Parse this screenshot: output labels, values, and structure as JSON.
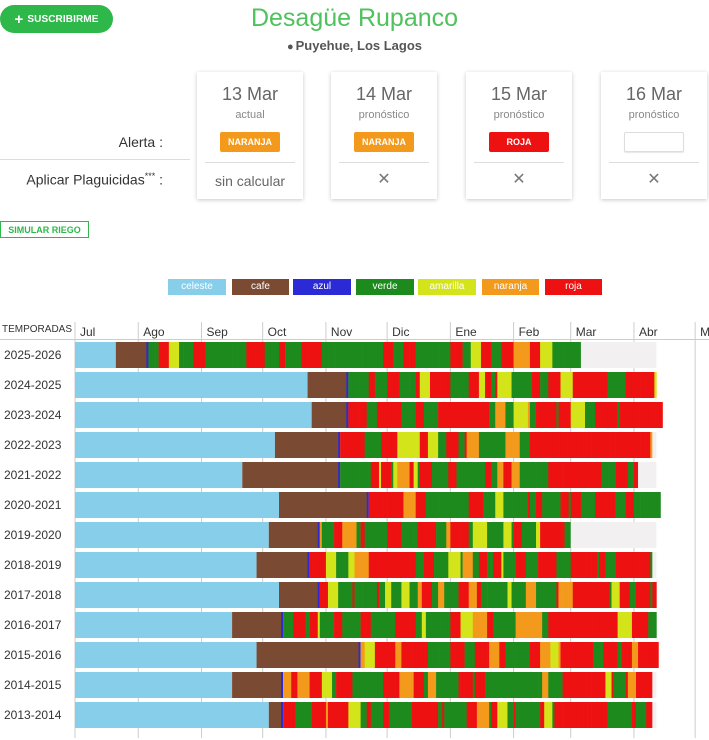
{
  "subscribe_label": "SUSCRIBIRME",
  "title": "Desagüe Rupanco",
  "location": "Puyehue, Los Lagos",
  "labels": {
    "alerta": "Alerta :",
    "plaguicidas": "Aplicar Plaguicidas",
    "plaguicidas_mark": "***",
    "colon": " :"
  },
  "cards": [
    {
      "date": "13 Mar",
      "sub": "actual",
      "alert": "NARANJA",
      "alert_color": "#f39a1c",
      "plaguicidas": "sin calcular"
    },
    {
      "date": "14 Mar",
      "sub": "pronóstico",
      "alert": "NARANJA",
      "alert_color": "#f39a1c",
      "plaguicidas": "✕"
    },
    {
      "date": "15 Mar",
      "sub": "pronóstico",
      "alert": "ROJA",
      "alert_color": "#ee1111",
      "plaguicidas": "✕"
    },
    {
      "date": "16 Mar",
      "sub": "pronóstico",
      "alert": "",
      "alert_color": "",
      "plaguicidas": "✕"
    }
  ],
  "simular_label": "SIMULAR RIEGO",
  "legend": [
    {
      "name": "celeste",
      "color": "#87ceeb"
    },
    {
      "name": "cafe",
      "color": "#7b4a32"
    },
    {
      "name": "azul",
      "color": "#2a2ad6"
    },
    {
      "name": "verde",
      "color": "#1d8a1d"
    },
    {
      "name": "amarilla",
      "color": "#d4e41a"
    },
    {
      "name": "naranja",
      "color": "#f39a1c"
    },
    {
      "name": "roja",
      "color": "#ee1111"
    }
  ],
  "chart_data": {
    "type": "timeline",
    "season_header": "TEMPORADAS",
    "months": [
      "Jul",
      "Ago",
      "Sep",
      "Oct",
      "Nov",
      "Dic",
      "Ene",
      "Feb",
      "Mar",
      "Abr",
      "May"
    ],
    "seasons": [
      "2025-2026",
      "2024-2025",
      "2023-2024",
      "2022-2023",
      "2021-2022",
      "2020-2021",
      "2019-2020",
      "2018-2019",
      "2017-2018",
      "2016-2017",
      "2015-2016",
      "2014-2015",
      "2013-2014"
    ],
    "celeste_end_day": [
      20,
      114,
      116,
      98,
      82,
      100,
      95,
      89,
      100,
      77,
      89,
      77,
      95
    ],
    "cafe_end_day": [
      36,
      134,
      134,
      130,
      130,
      144,
      120,
      115,
      120,
      102,
      140,
      102,
      102
    ],
    "data_end_day": [
      248,
      285,
      288,
      283,
      276,
      287,
      243,
      283,
      285,
      285,
      286,
      283,
      283
    ]
  }
}
